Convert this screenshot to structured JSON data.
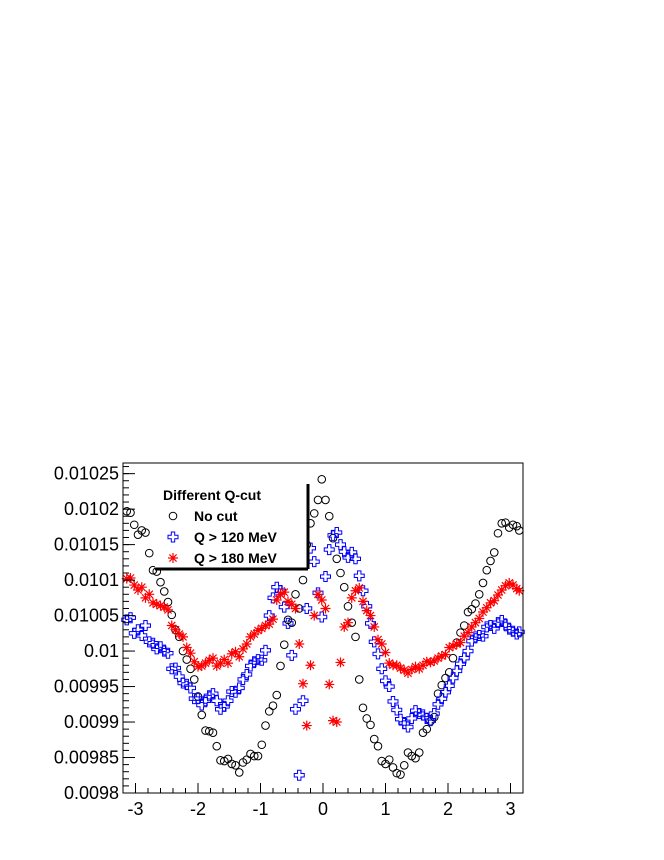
{
  "chart_data": {
    "type": "scatter",
    "title": "",
    "xlabel": "",
    "ylabel": "",
    "xlim": [
      -3.2,
      3.2
    ],
    "ylim": [
      0.0098,
      0.010265
    ],
    "x_ticks": [
      -3,
      -2,
      -1,
      0,
      1,
      2,
      3
    ],
    "x_tick_labels": [
      "-3",
      "-2",
      "-1",
      "0",
      "1",
      "2",
      "3"
    ],
    "y_ticks": [
      0.0098,
      0.00985,
      0.0099,
      0.00995,
      0.01,
      0.01005,
      0.0101,
      0.01015,
      0.0102,
      0.01025
    ],
    "y_tick_labels": [
      "0.0098",
      "0.00985",
      "0.0099",
      "0.00995",
      "0.01",
      "0.01005",
      "0.0101",
      "0.01015",
      "0.0102",
      "0.01025"
    ],
    "grid": false,
    "legend": {
      "title": "Different Q-cut",
      "placement": "top-left",
      "entries": [
        "No cut",
        "Q > 120 MeV",
        "Q > 180 MeV"
      ]
    },
    "series": [
      {
        "name": "No cut",
        "marker": "open-circle",
        "color": "#000000",
        "x": [
          -3.14,
          -3.08,
          -3.02,
          -2.96,
          -2.9,
          -2.84,
          -2.78,
          -2.72,
          -2.66,
          -2.6,
          -2.54,
          -2.48,
          -2.42,
          -2.36,
          -2.3,
          -2.24,
          -2.18,
          -2.12,
          -2.06,
          -2.0,
          -1.94,
          -1.88,
          -1.82,
          -1.76,
          -1.7,
          -1.64,
          -1.58,
          -1.52,
          -1.46,
          -1.4,
          -1.34,
          -1.28,
          -1.22,
          -1.16,
          -1.1,
          -1.04,
          -0.98,
          -0.92,
          -0.86,
          -0.8,
          -0.74,
          -0.68,
          -0.62,
          -0.56,
          -0.5,
          -0.44,
          -0.38,
          -0.32,
          -0.26,
          -0.2,
          -0.14,
          -0.08,
          -0.02,
          0.04,
          0.1,
          0.16,
          0.22,
          0.28,
          0.34,
          0.4,
          0.46,
          0.52,
          0.58,
          0.64,
          0.7,
          0.76,
          0.82,
          0.88,
          0.94,
          1.0,
          1.06,
          1.12,
          1.18,
          1.24,
          1.3,
          1.36,
          1.42,
          1.48,
          1.54,
          1.6,
          1.66,
          1.72,
          1.78,
          1.84,
          1.9,
          1.96,
          2.02,
          2.08,
          2.14,
          2.2,
          2.26,
          2.32,
          2.38,
          2.44,
          2.5,
          2.56,
          2.62,
          2.68,
          2.74,
          2.8,
          2.86,
          2.92,
          2.98,
          3.04,
          3.1,
          3.14
        ],
        "y": [
          0.010197,
          0.010195,
          0.010178,
          0.010164,
          0.01017,
          0.010167,
          0.010138,
          0.010114,
          0.010112,
          0.010097,
          0.010084,
          0.010069,
          0.010051,
          0.01003,
          0.01002,
          0.01,
          0.009988,
          0.009975,
          0.00996,
          0.009936,
          0.00991,
          0.009888,
          0.009887,
          0.009885,
          0.009866,
          0.009846,
          0.009845,
          0.009848,
          0.009841,
          0.009839,
          0.009829,
          0.009843,
          0.009847,
          0.009855,
          0.009852,
          0.009852,
          0.009868,
          0.009895,
          0.009915,
          0.009923,
          0.009938,
          0.009979,
          0.010009,
          0.010044,
          0.01004,
          0.01008,
          0.01006,
          0.0101,
          0.01015,
          0.01018,
          0.010194,
          0.010213,
          0.010242,
          0.010213,
          0.01019,
          0.010159,
          0.01013,
          0.01011,
          0.01009,
          0.010063,
          0.01004,
          0.01002,
          0.00996,
          0.00992,
          0.009905,
          0.009896,
          0.009876,
          0.009866,
          0.009845,
          0.009841,
          0.009847,
          0.009836,
          0.009828,
          0.009826,
          0.009839,
          0.009857,
          0.009852,
          0.009849,
          0.009857,
          0.009885,
          0.00989,
          0.009901,
          0.009907,
          0.00994,
          0.009952,
          0.009962,
          0.00997,
          0.00999,
          0.010012,
          0.010026,
          0.010036,
          0.010055,
          0.010059,
          0.010067,
          0.01008,
          0.010096,
          0.010114,
          0.010127,
          0.010139,
          0.010166,
          0.01018,
          0.010181,
          0.010174,
          0.010178,
          0.010176,
          0.01017
        ]
      },
      {
        "name": "Q > 120 MeV",
        "marker": "open-cross",
        "color": "#0000ff",
        "x": [
          -3.14,
          -3.08,
          -3.02,
          -2.96,
          -2.9,
          -2.84,
          -2.78,
          -2.72,
          -2.66,
          -2.6,
          -2.54,
          -2.48,
          -2.42,
          -2.36,
          -2.3,
          -2.24,
          -2.18,
          -2.12,
          -2.06,
          -2.0,
          -1.94,
          -1.88,
          -1.82,
          -1.76,
          -1.7,
          -1.64,
          -1.58,
          -1.52,
          -1.46,
          -1.4,
          -1.34,
          -1.28,
          -1.22,
          -1.16,
          -1.1,
          -1.04,
          -0.98,
          -0.92,
          -0.86,
          -0.8,
          -0.74,
          -0.68,
          -0.62,
          -0.56,
          -0.5,
          -0.44,
          -0.38,
          -0.32,
          -0.26,
          -0.2,
          -0.14,
          -0.08,
          -0.02,
          0.04,
          0.1,
          0.16,
          0.22,
          0.28,
          0.34,
          0.4,
          0.46,
          0.52,
          0.58,
          0.64,
          0.7,
          0.76,
          0.82,
          0.88,
          0.94,
          1.0,
          1.06,
          1.12,
          1.18,
          1.24,
          1.3,
          1.36,
          1.42,
          1.48,
          1.54,
          1.6,
          1.66,
          1.72,
          1.78,
          1.84,
          1.9,
          1.96,
          2.02,
          2.08,
          2.14,
          2.2,
          2.26,
          2.32,
          2.38,
          2.44,
          2.5,
          2.56,
          2.62,
          2.68,
          2.74,
          2.8,
          2.86,
          2.92,
          2.98,
          3.04,
          3.1,
          3.14
        ],
        "y": [
          0.010044,
          0.010047,
          0.010025,
          0.01003,
          0.010022,
          0.010036,
          0.010013,
          0.010011,
          0.010003,
          0.010006,
          0.01,
          0.009997,
          0.009975,
          0.009976,
          0.009964,
          0.009955,
          0.009953,
          0.009948,
          0.009933,
          0.009933,
          0.009924,
          0.00993,
          0.009937,
          0.00994,
          0.00993,
          0.009918,
          0.009922,
          0.00993,
          0.009943,
          0.009942,
          0.009948,
          0.00996,
          0.009967,
          0.009979,
          0.009985,
          0.009988,
          0.009987,
          0.010001,
          0.01005,
          0.010075,
          0.01009,
          0.010085,
          0.010062,
          0.010039,
          0.009994,
          0.009918,
          0.009825,
          0.00993,
          0.01006,
          0.010145,
          0.010126,
          0.010082,
          0.010048,
          0.010105,
          0.010143,
          0.010163,
          0.010167,
          0.01015,
          0.01014,
          0.010132,
          0.010139,
          0.01013,
          0.010106,
          0.010085,
          0.010063,
          0.010039,
          0.010013,
          0.009996,
          0.009975,
          0.009958,
          0.00995,
          0.009929,
          0.009917,
          0.009904,
          0.009898,
          0.009893,
          0.009905,
          0.009916,
          0.009912,
          0.00991,
          0.009905,
          0.009902,
          0.009912,
          0.009925,
          0.009933,
          0.009942,
          0.009951,
          0.009962,
          0.009972,
          0.009982,
          0.00999,
          0.01,
          0.010014,
          0.01002,
          0.010022,
          0.010021,
          0.010034,
          0.010036,
          0.010032,
          0.01004,
          0.010043,
          0.010037,
          0.010031,
          0.010028,
          0.010024,
          0.010027
        ]
      },
      {
        "name": "Q > 180 MeV",
        "marker": "asterisk",
        "color": "#ff0000",
        "x": [
          -3.14,
          -3.08,
          -3.02,
          -2.96,
          -2.9,
          -2.84,
          -2.78,
          -2.72,
          -2.66,
          -2.6,
          -2.54,
          -2.48,
          -2.42,
          -2.36,
          -2.3,
          -2.24,
          -2.18,
          -2.12,
          -2.06,
          -2.0,
          -1.94,
          -1.88,
          -1.82,
          -1.76,
          -1.7,
          -1.64,
          -1.58,
          -1.52,
          -1.46,
          -1.4,
          -1.34,
          -1.28,
          -1.22,
          -1.16,
          -1.1,
          -1.04,
          -0.98,
          -0.92,
          -0.86,
          -0.8,
          -0.74,
          -0.68,
          -0.62,
          -0.56,
          -0.5,
          -0.44,
          -0.38,
          -0.32,
          -0.26,
          -0.2,
          -0.14,
          -0.08,
          -0.02,
          0.04,
          0.1,
          0.16,
          0.22,
          0.28,
          0.34,
          0.4,
          0.46,
          0.52,
          0.58,
          0.64,
          0.7,
          0.76,
          0.82,
          0.88,
          0.94,
          1.0,
          1.06,
          1.12,
          1.18,
          1.24,
          1.3,
          1.36,
          1.42,
          1.48,
          1.54,
          1.6,
          1.66,
          1.72,
          1.78,
          1.84,
          1.9,
          1.96,
          2.02,
          2.08,
          2.14,
          2.2,
          2.26,
          2.32,
          2.38,
          2.44,
          2.5,
          2.56,
          2.62,
          2.68,
          2.74,
          2.8,
          2.86,
          2.92,
          2.98,
          3.04,
          3.1,
          3.14
        ],
        "y": [
          0.010102,
          0.010103,
          0.010093,
          0.010086,
          0.01009,
          0.010075,
          0.01008,
          0.010068,
          0.010066,
          0.010064,
          0.010062,
          0.010058,
          0.010036,
          0.01003,
          0.010024,
          0.01002,
          0.010005,
          0.009997,
          0.009985,
          0.009978,
          0.009979,
          0.009983,
          0.009987,
          0.00999,
          0.009979,
          0.009983,
          0.009988,
          0.009983,
          0.009996,
          0.009999,
          0.009992,
          0.010003,
          0.01001,
          0.01002,
          0.010024,
          0.010029,
          0.010032,
          0.010036,
          0.010038,
          0.010045,
          0.010072,
          0.01008,
          0.010083,
          0.01007,
          0.010066,
          0.01006,
          0.01001,
          0.009954,
          0.009895,
          0.00998,
          0.01005,
          0.01008,
          0.010072,
          0.01006,
          0.009953,
          0.009902,
          0.0099,
          0.009984,
          0.010034,
          0.01004,
          0.010075,
          0.010085,
          0.010089,
          0.01007,
          0.010057,
          0.01005,
          0.010034,
          0.010016,
          0.01001,
          0.009998,
          0.009983,
          0.00998,
          0.00998,
          0.009976,
          0.009973,
          0.009969,
          0.009974,
          0.009978,
          0.009975,
          0.00998,
          0.009985,
          0.009984,
          0.009986,
          0.00999,
          0.009993,
          0.009995,
          0.010005,
          0.010007,
          0.01001,
          0.010012,
          0.010021,
          0.010026,
          0.010034,
          0.01004,
          0.010046,
          0.010055,
          0.010061,
          0.010068,
          0.010071,
          0.010079,
          0.010086,
          0.010092,
          0.010096,
          0.010093,
          0.010088,
          0.010085
        ]
      }
    ]
  }
}
